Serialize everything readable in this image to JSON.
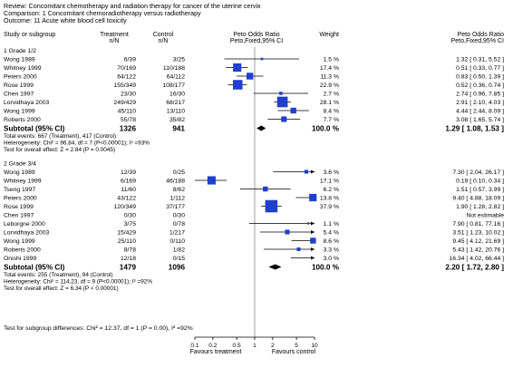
{
  "header": {
    "review": "Review:  Concomitant chemotherapy and radiation therapy for cancer of the uterine cervix",
    "comparison": "Comparison:  1 Concomitant chemoradiotherapy versus radiotherapy",
    "outcome": "Outcome:  11 Acute white blood cell toxicity"
  },
  "columns": {
    "study": "Study or subgroup",
    "treatment": "Treatment",
    "control": "Control",
    "nN": "n/N",
    "or": "Peto Odds Ratio",
    "or_sub": "Peto,Fixed,95% CI",
    "weight": "Weight",
    "or_right": "Peto Odds Ratio",
    "or_right_sub": "Peto,Fixed,95% CI"
  },
  "footer": {
    "subgroup_diff": "Test for subgroup differences: Chi² = 12.37, df = 1 (P = 0.00), I² =92%",
    "favours_left": "Favours treatment",
    "favours_right": "Favours control"
  },
  "colors": {
    "marker": "#1f3fd0",
    "line": "#000000",
    "axis": "#888888"
  },
  "chart_data": {
    "type": "forest",
    "scale": "log",
    "xlim": [
      0.1,
      10
    ],
    "axis_ticks": [
      {
        "value": 0.1,
        "label": "0.1"
      },
      {
        "value": 0.2,
        "label": "0.2"
      },
      {
        "value": 0.5,
        "label": "0.5"
      },
      {
        "value": 1,
        "label": "1"
      },
      {
        "value": 2,
        "label": "2"
      },
      {
        "value": 5,
        "label": "5"
      },
      {
        "value": 10,
        "label": "10"
      }
    ],
    "groups": [
      {
        "title": "1 Grade 1/2",
        "studies": [
          {
            "name": "Wong 1989",
            "t": "6/39",
            "c": "3/25",
            "or": 1.32,
            "lo": 0.31,
            "hi": 5.52,
            "w": "1.5 %",
            "ci": "1.32 [ 0.31, 5.52 ]"
          },
          {
            "name": "Whitney 1999",
            "t": "70/169",
            "c": "110/188",
            "or": 0.51,
            "lo": 0.33,
            "hi": 0.77,
            "w": "17.4 %",
            "ci": "0.51 [ 0.33, 0.77 ]"
          },
          {
            "name": "Peters 2000",
            "t": "64/122",
            "c": "64/112",
            "or": 0.83,
            "lo": 0.5,
            "hi": 1.39,
            "w": "11.3 %",
            "ci": "0.83 [ 0.50, 1.39 ]"
          },
          {
            "name": "Rose 1999",
            "t": "155/349",
            "c": "108/177",
            "or": 0.52,
            "lo": 0.36,
            "hi": 0.74,
            "w": "22.9 %",
            "ci": "0.52 [ 0.36, 0.74 ]"
          },
          {
            "name": "Chen 1997",
            "t": "23/30",
            "c": "16/30",
            "or": 2.74,
            "lo": 0.96,
            "hi": 7.85,
            "w": "2.7 %",
            "ci": "2.74 [ 0.96, 7.85 ]"
          },
          {
            "name": "Lorvidhaya 2003",
            "t": "249/429",
            "c": "68/217",
            "or": 2.91,
            "lo": 2.1,
            "hi": 4.03,
            "w": "28.1 %",
            "ci": "2.91 [ 2.10, 4.03 ]"
          },
          {
            "name": "Wong 1999",
            "t": "45/110",
            "c": "13/110",
            "or": 4.44,
            "lo": 2.44,
            "hi": 8.09,
            "w": "8.4 %",
            "ci": "4.44 [ 2.44, 8.09 ]"
          },
          {
            "name": "Roberts 2000",
            "t": "55/78",
            "c": "35/82",
            "or": 3.08,
            "lo": 1.65,
            "hi": 5.74,
            "w": "7.7 %",
            "ci": "3.08 [ 1.65, 5.74 ]"
          }
        ],
        "subtotal": {
          "label": "Subtotal (95% CI)",
          "t": "1326",
          "c": "941",
          "or": 1.29,
          "lo": 1.08,
          "hi": 1.53,
          "w": "100.0 %",
          "ci": "1.29 [ 1.08, 1.53 ]"
        },
        "notes": [
          "Total events: 667 (Treatment), 417 (Control)",
          "Heterogeneity: Chi² = 96.84, df = 7 (P<0.00001); I² =93%",
          "Test for overall effect: Z = 2.84 (P = 0.0045)"
        ]
      },
      {
        "title": "2 Grade 3/4",
        "studies": [
          {
            "name": "Wong 1989",
            "t": "12/39",
            "c": "0/25",
            "or": 7.3,
            "lo": 2.04,
            "hi": 26.17,
            "w": "3.6 %",
            "ci": "7.30 [ 2.04, 26.17 ]"
          },
          {
            "name": "Whitney 1999",
            "t": "6/169",
            "c": "46/188",
            "or": 0.19,
            "lo": 0.1,
            "hi": 0.34,
            "w": "17.1 %",
            "ci": "0.19 [ 0.10, 0.34 ]"
          },
          {
            "name": "Tseng 1997",
            "t": "11/60",
            "c": "8/62",
            "or": 1.51,
            "lo": 0.57,
            "hi": 3.99,
            "w": "6.2 %",
            "ci": "1.51 [ 0.57, 3.99 ]"
          },
          {
            "name": "Peters 2000",
            "t": "43/122",
            "c": "1/112",
            "or": 9.4,
            "lo": 4.88,
            "hi": 18.09,
            "w": "13.8 %",
            "ci": "9.40 [ 4.88, 18.09 ]"
          },
          {
            "name": "Rose 1999",
            "t": "120/349",
            "c": "37/177",
            "or": 1.9,
            "lo": 1.28,
            "hi": 2.82,
            "w": "37.9 %",
            "ci": "1.90 [ 1.28, 2.82 ]"
          },
          {
            "name": "Chen 1997",
            "t": "0/30",
            "c": "0/30",
            "or": null,
            "lo": null,
            "hi": null,
            "w": "",
            "ci": "Not estimable"
          },
          {
            "name": "Leborgne 2000",
            "t": "3/75",
            "c": "0/78",
            "or": 7.9,
            "lo": 0.81,
            "hi": 77.16,
            "w": "1.1 %",
            "ci": "7.90 [ 0.81, 77.16 ]"
          },
          {
            "name": "Lorvidhaya 2003",
            "t": "15/429",
            "c": "1/217",
            "or": 3.51,
            "lo": 1.23,
            "hi": 10.02,
            "w": "5.4 %",
            "ci": "3.51 [ 1.23, 10.02 ]"
          },
          {
            "name": "Wong 1999",
            "t": "25/110",
            "c": "0/110",
            "or": 9.45,
            "lo": 4.12,
            "hi": 21.69,
            "w": "8.6 %",
            "ci": "9.45 [ 4.12, 21.69 ]"
          },
          {
            "name": "Roberts 2000",
            "t": "8/78",
            "c": "1/82",
            "or": 5.43,
            "lo": 1.42,
            "hi": 20.76,
            "w": "3.3 %",
            "ci": "5.43 [ 1.42, 20.76 ]"
          },
          {
            "name": "Onishi 1999",
            "t": "12/18",
            "c": "0/15",
            "or": 16.34,
            "lo": 4.02,
            "hi": 66.44,
            "w": "3.0 %",
            "ci": "16.34 [ 4.02, 66.44 ]"
          }
        ],
        "subtotal": {
          "label": "Subtotal (95% CI)",
          "t": "1479",
          "c": "1096",
          "or": 2.2,
          "lo": 1.72,
          "hi": 2.8,
          "w": "100.0 %",
          "ci": "2.20 [ 1.72, 2.80 ]"
        },
        "notes": [
          "Total events: 255 (Treatment), 94 (Control)",
          "Heterogeneity: Chi² = 114.23, df = 9 (P<0.00001); I² =92%",
          "Test for overall effect: Z = 6.34 (P < 0.00001)"
        ]
      }
    ]
  }
}
